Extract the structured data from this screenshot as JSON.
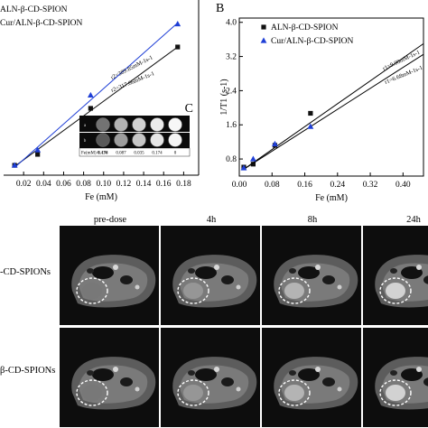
{
  "chart_data": [
    {
      "type": "scatter",
      "panel_label": "",
      "xlabel": "Fe (mM)",
      "ylabel": "",
      "xlim": [
        0.0,
        0.195
      ],
      "xticks": [
        "0.02",
        "0.04",
        "0.06",
        "0.08",
        "0.10",
        "0.12",
        "0.14",
        "0.16",
        "0.18"
      ],
      "series": [
        {
          "name": "ALN-β-CD-SPION",
          "marker": "square",
          "color": "#111111",
          "x": [
            0.011,
            0.034,
            0.087,
            0.174
          ],
          "y": [
            0.4,
            1.4,
            5.6,
            11.2
          ],
          "fit": [
            [
              0.011,
              0.3
            ],
            [
              0.174,
              11.2
            ]
          ],
          "fit_label": "r2=317.66mM-1s-1"
        },
        {
          "name": "Cur/ALN-β-CD-SPION",
          "marker": "triangle",
          "color": "#1f3fd6",
          "x": [
            0.011,
            0.034,
            0.087,
            0.174
          ],
          "y": [
            0.4,
            1.8,
            6.8,
            13.3
          ],
          "fit": [
            [
              0.011,
              0.2
            ],
            [
              0.174,
              13.4
            ]
          ],
          "fit_label": "r2=389.85mM-1s-1"
        }
      ]
    },
    {
      "type": "scatter",
      "panel_label": "B",
      "xlabel": "Fe (mM)",
      "ylabel": "1/T1 (s-1)",
      "xlim": [
        0.0,
        0.45
      ],
      "ylim": [
        0.4,
        4.1
      ],
      "xticks": [
        "0.00",
        "0.08",
        "0.16",
        "0.24",
        "0.32",
        "0.40"
      ],
      "yticks": [
        "0.8",
        "1.6",
        "2.4",
        "3.2",
        "4.0"
      ],
      "series": [
        {
          "name": "ALN-β-CD-SPION",
          "marker": "square",
          "color": "#111111",
          "x": [
            0.011,
            0.034,
            0.087,
            0.174
          ],
          "y": [
            0.61,
            0.68,
            1.12,
            1.87
          ],
          "fit": [
            [
              0.011,
              0.56
            ],
            [
              0.45,
              3.5
            ]
          ],
          "fit_label": "r1=9.00mM-1s-1"
        },
        {
          "name": "Cur/ALN-β-CD-SPION",
          "marker": "triangle",
          "color": "#1f3fd6",
          "x": [
            0.011,
            0.034,
            0.087,
            0.174
          ],
          "y": [
            0.59,
            0.8,
            1.15,
            1.56
          ],
          "fit": [
            [
              0.011,
              0.56
            ],
            [
              0.45,
              3.25
            ]
          ],
          "fit_label": "r1=6.68mM-1s-1"
        }
      ]
    }
  ],
  "inset": {
    "panel_label": "C",
    "row_labels": [
      "a",
      "b"
    ],
    "fe_label": "Fe(mM)",
    "concentrations": [
      "0.436",
      "0.174",
      "0.087",
      "0.035",
      "0.174",
      "0"
    ],
    "brightness_row_a": [
      0.2,
      0.45,
      0.7,
      0.82,
      0.92,
      0.97
    ],
    "brightness_row_b": [
      0.12,
      0.35,
      0.62,
      0.78,
      0.9,
      0.96
    ]
  },
  "mri": {
    "columns": [
      "pre-dose",
      "4h",
      "8h",
      "24h"
    ],
    "rows": [
      "-CD-SPIONs",
      "β-CD-SPIONs"
    ]
  }
}
